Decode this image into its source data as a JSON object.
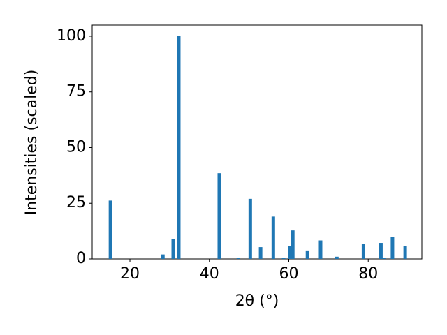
{
  "chart_data": {
    "type": "bar",
    "x_label": "2θ (°)",
    "y_label": "Intensities (scaled)",
    "x": [
      15.1,
      28.3,
      30.9,
      32.3,
      42.5,
      47.3,
      50.3,
      52.9,
      56.1,
      58.7,
      60.3,
      61.0,
      64.7,
      68.0,
      72.1,
      78.8,
      83.2,
      83.9,
      86.1,
      89.3
    ],
    "values": [
      26.2,
      2,
      9,
      100,
      38.5,
      0.5,
      27,
      5.3,
      19,
      0.5,
      5.8,
      12.8,
      3.8,
      8.3,
      1,
      6.8,
      7.2,
      0.6,
      10,
      5.8
    ],
    "color": "#1f77b4",
    "xlim": [
      10.5,
      93.5
    ],
    "xticks": [
      20,
      40,
      60,
      80
    ],
    "ylim": [
      0,
      105
    ],
    "yticks": [
      0,
      25,
      50,
      75,
      100
    ]
  }
}
